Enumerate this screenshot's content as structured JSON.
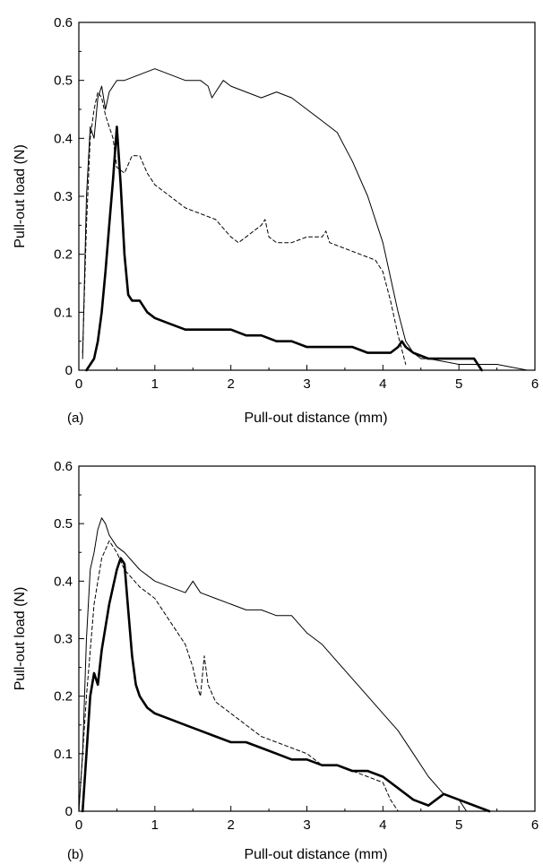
{
  "chart_data": [
    {
      "type": "line",
      "panel_label": "(a)",
      "xlabel": "Pull-out distance (mm)",
      "ylabel": "Pull-out load (N)",
      "xlim": [
        0,
        6
      ],
      "ylim": [
        0,
        0.6
      ],
      "xticks": [
        "0",
        "1",
        "2",
        "3",
        "4",
        "5",
        "6"
      ],
      "yticks": [
        "0",
        "0.1",
        "0.2",
        "0.3",
        "0.4",
        "0.5",
        "0.6"
      ],
      "grid": false,
      "series": [
        {
          "style": "thin-solid",
          "x": [
            0.05,
            0.1,
            0.15,
            0.2,
            0.25,
            0.3,
            0.35,
            0.4,
            0.5,
            0.6,
            0.8,
            1.0,
            1.2,
            1.4,
            1.6,
            1.7,
            1.75,
            1.8,
            1.9,
            2.0,
            2.2,
            2.4,
            2.6,
            2.8,
            3.0,
            3.2,
            3.4,
            3.6,
            3.8,
            4.0,
            4.1,
            4.2,
            4.3,
            4.4,
            4.5,
            4.6,
            5.0,
            5.5,
            5.9
          ],
          "y": [
            0.02,
            0.3,
            0.42,
            0.4,
            0.47,
            0.49,
            0.45,
            0.48,
            0.5,
            0.5,
            0.51,
            0.52,
            0.51,
            0.5,
            0.5,
            0.49,
            0.47,
            0.48,
            0.5,
            0.49,
            0.48,
            0.47,
            0.48,
            0.47,
            0.45,
            0.43,
            0.41,
            0.36,
            0.3,
            0.22,
            0.16,
            0.1,
            0.05,
            0.03,
            0.02,
            0.02,
            0.01,
            0.01,
            0.0
          ]
        },
        {
          "style": "dashed",
          "x": [
            0.05,
            0.1,
            0.15,
            0.2,
            0.25,
            0.3,
            0.35,
            0.4,
            0.45,
            0.5,
            0.6,
            0.7,
            0.8,
            0.9,
            1.0,
            1.2,
            1.4,
            1.6,
            1.8,
            2.0,
            2.1,
            2.2,
            2.3,
            2.4,
            2.45,
            2.5,
            2.6,
            2.8,
            3.0,
            3.2,
            3.25,
            3.3,
            3.5,
            3.7,
            3.9,
            4.0,
            4.1,
            4.2,
            4.3
          ],
          "y": [
            0.03,
            0.25,
            0.4,
            0.45,
            0.48,
            0.47,
            0.44,
            0.42,
            0.4,
            0.35,
            0.34,
            0.37,
            0.37,
            0.34,
            0.32,
            0.3,
            0.28,
            0.27,
            0.26,
            0.23,
            0.22,
            0.23,
            0.24,
            0.25,
            0.26,
            0.23,
            0.22,
            0.22,
            0.23,
            0.23,
            0.24,
            0.22,
            0.21,
            0.2,
            0.19,
            0.17,
            0.12,
            0.06,
            0.01
          ]
        },
        {
          "style": "thick-solid",
          "x": [
            0.1,
            0.2,
            0.25,
            0.3,
            0.35,
            0.4,
            0.45,
            0.5,
            0.55,
            0.6,
            0.65,
            0.7,
            0.8,
            0.9,
            1.0,
            1.2,
            1.4,
            1.6,
            1.8,
            2.0,
            2.2,
            2.4,
            2.6,
            2.8,
            3.0,
            3.2,
            3.4,
            3.6,
            3.8,
            4.0,
            4.1,
            4.2,
            4.25,
            4.3,
            4.4,
            4.6,
            4.8,
            5.0,
            5.2,
            5.3
          ],
          "y": [
            0.0,
            0.02,
            0.05,
            0.1,
            0.17,
            0.25,
            0.33,
            0.42,
            0.32,
            0.2,
            0.13,
            0.12,
            0.12,
            0.1,
            0.09,
            0.08,
            0.07,
            0.07,
            0.07,
            0.07,
            0.06,
            0.06,
            0.05,
            0.05,
            0.04,
            0.04,
            0.04,
            0.04,
            0.03,
            0.03,
            0.03,
            0.04,
            0.05,
            0.04,
            0.03,
            0.02,
            0.02,
            0.02,
            0.02,
            0.0
          ]
        }
      ]
    },
    {
      "type": "line",
      "panel_label": "(b)",
      "xlabel": "Pull-out distance (mm)",
      "ylabel": "Pull-out load (N)",
      "xlim": [
        0,
        6
      ],
      "ylim": [
        0,
        0.6
      ],
      "xticks": [
        "0",
        "1",
        "2",
        "3",
        "4",
        "5",
        "6"
      ],
      "yticks": [
        "0",
        "0.1",
        "0.2",
        "0.3",
        "0.4",
        "0.5",
        "0.6"
      ],
      "grid": false,
      "series": [
        {
          "style": "thin-solid",
          "x": [
            0.0,
            0.05,
            0.1,
            0.15,
            0.2,
            0.25,
            0.3,
            0.35,
            0.4,
            0.5,
            0.6,
            0.8,
            1.0,
            1.2,
            1.4,
            1.5,
            1.6,
            1.8,
            2.0,
            2.2,
            2.4,
            2.6,
            2.8,
            3.0,
            3.2,
            3.4,
            3.6,
            3.8,
            4.0,
            4.2,
            4.4,
            4.6,
            4.8,
            5.0,
            5.1
          ],
          "y": [
            0.0,
            0.1,
            0.3,
            0.42,
            0.45,
            0.49,
            0.51,
            0.5,
            0.48,
            0.46,
            0.45,
            0.42,
            0.4,
            0.39,
            0.38,
            0.4,
            0.38,
            0.37,
            0.36,
            0.35,
            0.35,
            0.34,
            0.34,
            0.31,
            0.29,
            0.26,
            0.23,
            0.2,
            0.17,
            0.14,
            0.1,
            0.06,
            0.03,
            0.02,
            0.0
          ]
        },
        {
          "style": "dashed",
          "x": [
            0.0,
            0.1,
            0.2,
            0.3,
            0.4,
            0.5,
            0.6,
            0.8,
            1.0,
            1.2,
            1.4,
            1.5,
            1.55,
            1.6,
            1.65,
            1.7,
            1.8,
            2.0,
            2.2,
            2.4,
            2.6,
            2.8,
            3.0,
            3.2,
            3.4,
            3.6,
            3.8,
            4.0,
            4.1,
            4.2
          ],
          "y": [
            0.0,
            0.2,
            0.36,
            0.44,
            0.47,
            0.45,
            0.42,
            0.39,
            0.37,
            0.33,
            0.29,
            0.25,
            0.22,
            0.2,
            0.27,
            0.22,
            0.19,
            0.17,
            0.15,
            0.13,
            0.12,
            0.11,
            0.1,
            0.08,
            0.08,
            0.07,
            0.06,
            0.05,
            0.02,
            0.0
          ]
        },
        {
          "style": "thick-solid",
          "x": [
            0.05,
            0.1,
            0.15,
            0.2,
            0.25,
            0.3,
            0.35,
            0.4,
            0.5,
            0.55,
            0.6,
            0.65,
            0.7,
            0.75,
            0.8,
            0.9,
            1.0,
            1.2,
            1.4,
            1.6,
            1.8,
            2.0,
            2.2,
            2.4,
            2.6,
            2.8,
            3.0,
            3.2,
            3.4,
            3.6,
            3.8,
            4.0,
            4.2,
            4.4,
            4.6,
            4.7,
            4.8,
            5.0,
            5.2,
            5.4
          ],
          "y": [
            0.0,
            0.1,
            0.2,
            0.24,
            0.22,
            0.28,
            0.32,
            0.36,
            0.42,
            0.44,
            0.43,
            0.35,
            0.27,
            0.22,
            0.2,
            0.18,
            0.17,
            0.16,
            0.15,
            0.14,
            0.13,
            0.12,
            0.12,
            0.11,
            0.1,
            0.09,
            0.09,
            0.08,
            0.08,
            0.07,
            0.07,
            0.06,
            0.04,
            0.02,
            0.01,
            0.02,
            0.03,
            0.02,
            0.01,
            0.0
          ]
        }
      ]
    }
  ]
}
